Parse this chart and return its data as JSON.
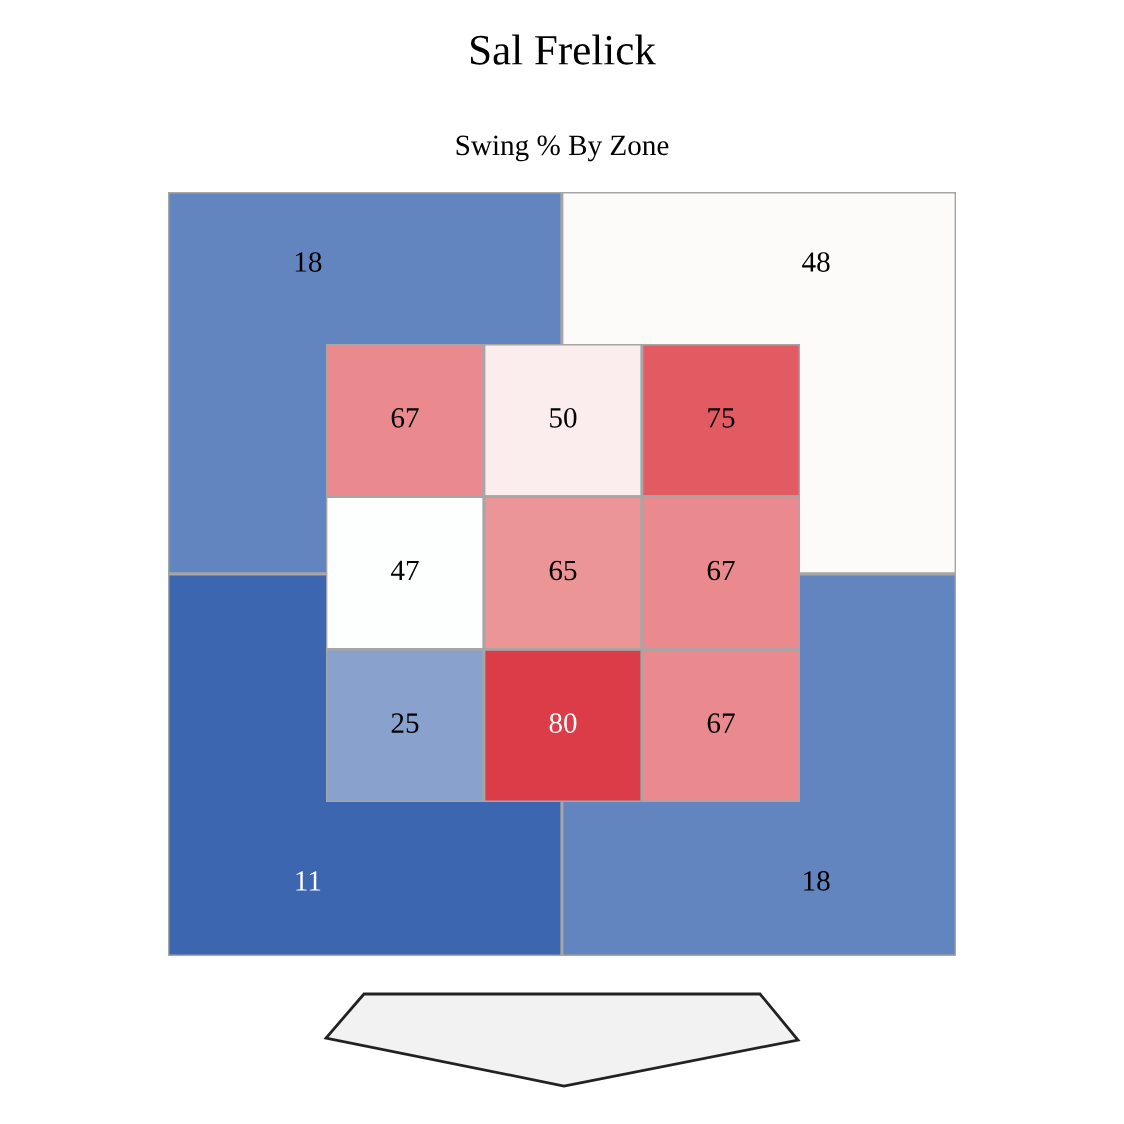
{
  "chart_data": [
    {
      "type": "heatmap",
      "title": "Sal Frelick",
      "subtitle": "Swing % By Zone",
      "categories": [
        null,
        null,
        null
      ],
      "y_categories": [
        null,
        null,
        null
      ],
      "cells": [
        [
          67,
          50,
          75
        ],
        [
          47,
          65,
          67
        ],
        [
          25,
          80,
          67
        ]
      ],
      "colors": [
        "#ea8a8f",
        "#fbeced",
        "#e25b63",
        "#fdfefe",
        "#eb9597",
        "#ea8a8f",
        "#88a1cd",
        "#dc3c47",
        "#ea8a8f"
      ],
      "data_labels": true
    },
    {
      "type": "heatmap",
      "categories": [
        null,
        null
      ],
      "y_categories": [
        null,
        null
      ],
      "cells": [
        [
          18,
          48
        ],
        [
          11,
          18
        ]
      ],
      "colors": [
        "#6385bf",
        "#fcfbfa",
        "#3c66b0",
        "#6385bf"
      ],
      "data_labels": true
    }
  ]
}
